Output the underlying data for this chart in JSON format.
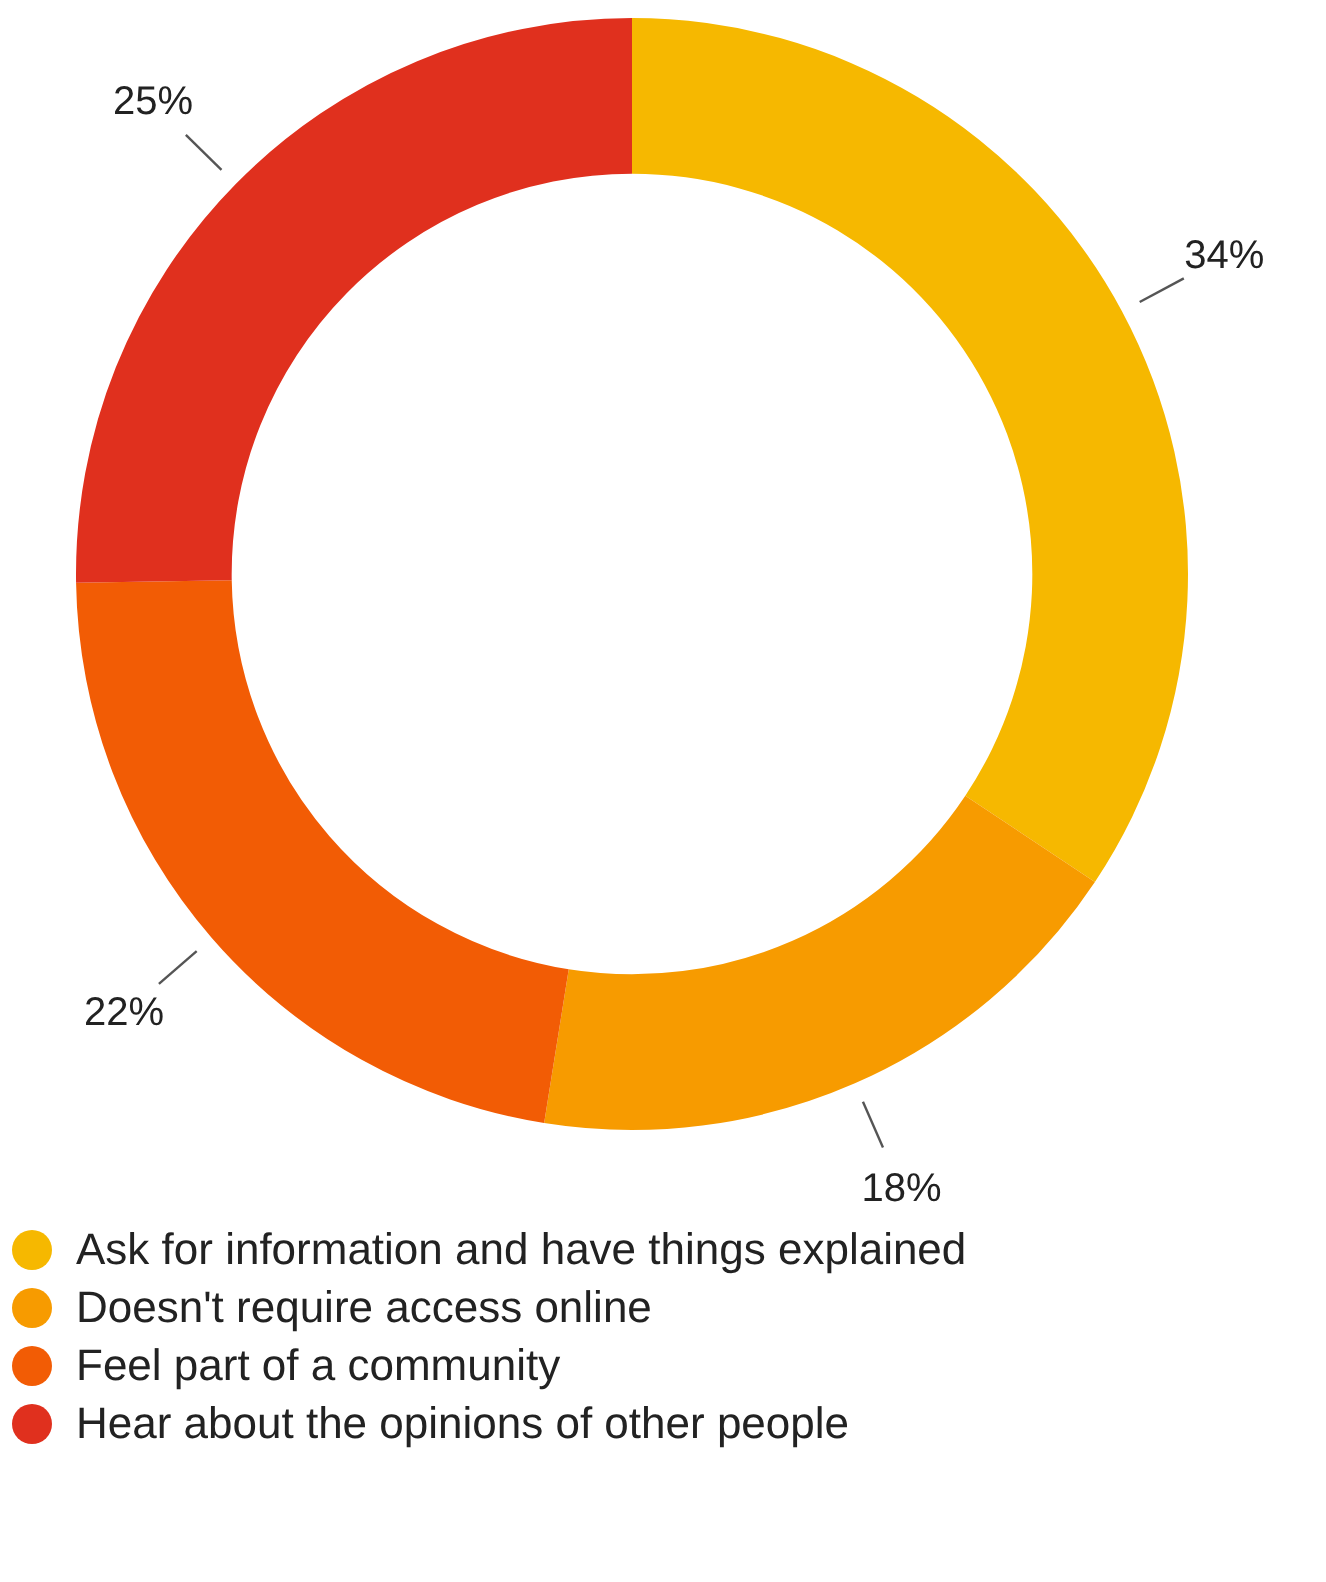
{
  "chart_data": {
    "type": "donut",
    "categories": [
      "Ask for information and have things explained",
      "Doesn't require access online",
      "Feel part of a community",
      "Hear about the opinions of other people"
    ],
    "values": [
      34,
      18,
      22,
      25
    ],
    "value_labels": [
      "34%",
      "18%",
      "22%",
      "25%"
    ],
    "colors": [
      "#f6b800",
      "#f79b00",
      "#f25c05",
      "#e0301e"
    ],
    "legend": "bottom"
  }
}
